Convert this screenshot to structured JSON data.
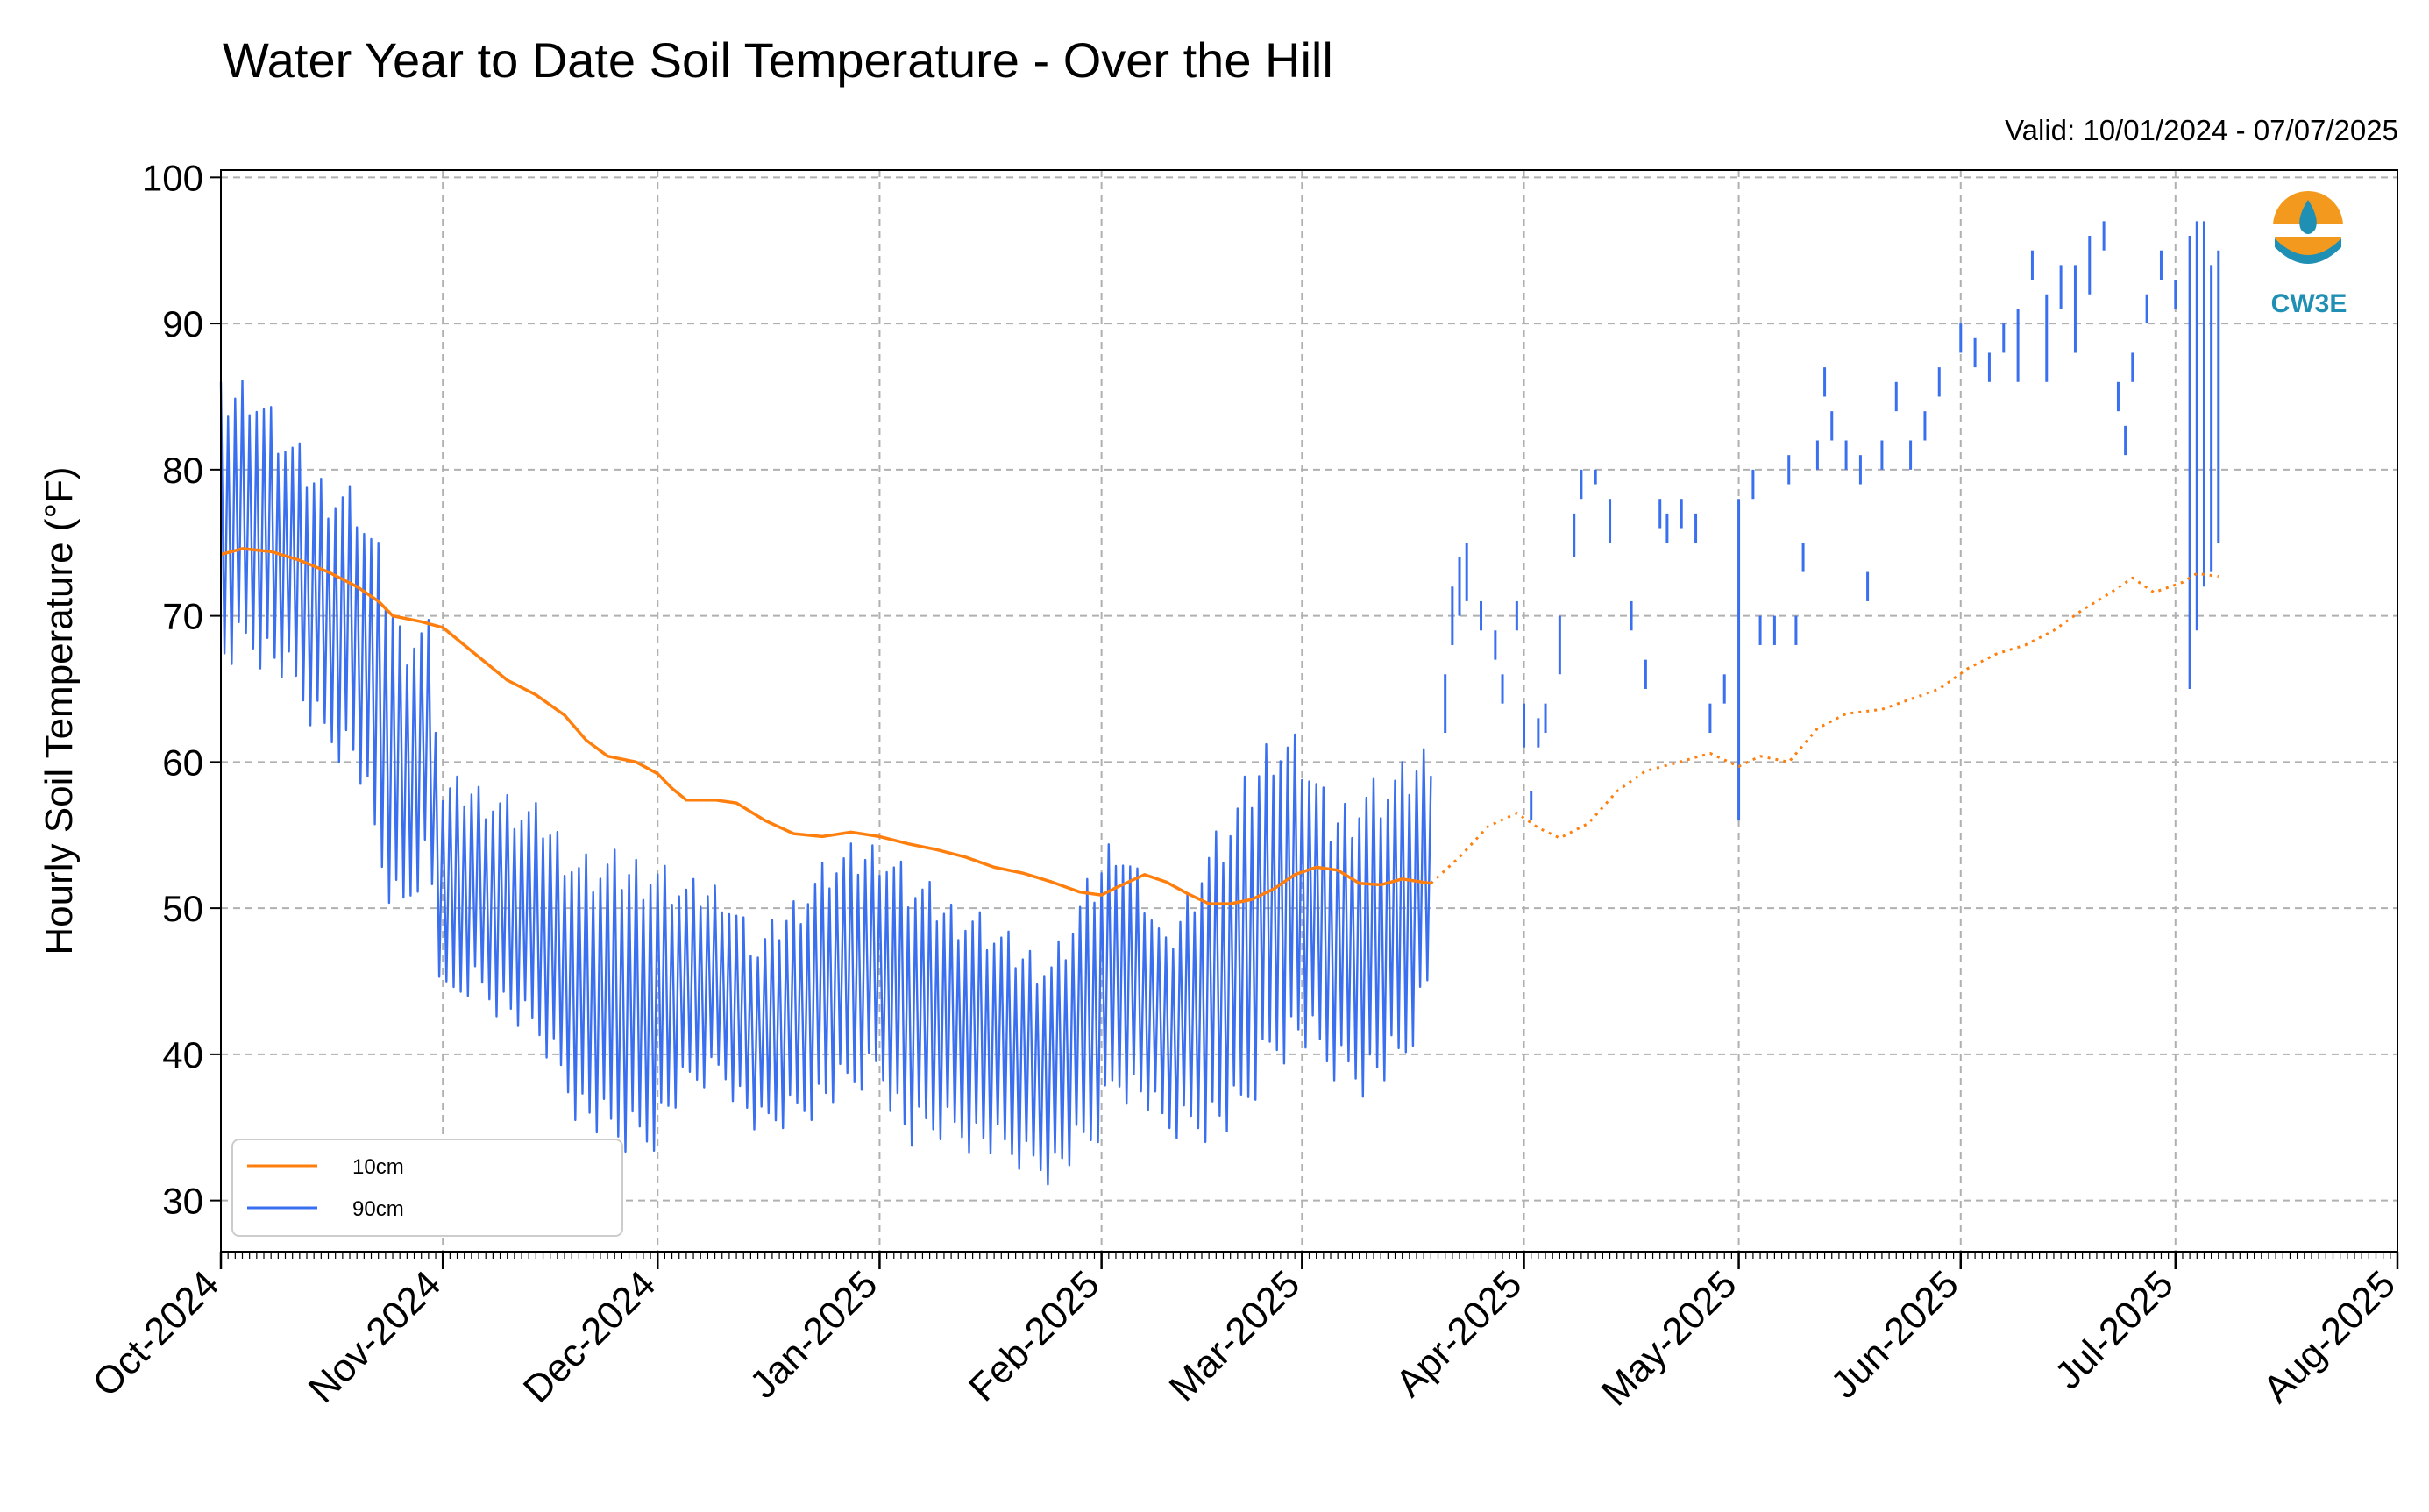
{
  "chart_data": {
    "type": "line",
    "title": "Water Year to Date Soil Temperature - Over the Hill",
    "subtitle": "Valid: 10/01/2024 - 07/07/2025",
    "ylabel": "Hourly Soil Temperature (°F)",
    "ylim": [
      26.5,
      100.5
    ],
    "yticks": [
      30,
      40,
      50,
      60,
      70,
      80,
      90,
      100
    ],
    "xlim": [
      "2024-10-01",
      "2025-08-01"
    ],
    "xticks": [
      {
        "date": "2024-10-01",
        "label": "Oct-2024"
      },
      {
        "date": "2024-11-01",
        "label": "Nov-2024"
      },
      {
        "date": "2024-12-01",
        "label": "Dec-2024"
      },
      {
        "date": "2025-01-01",
        "label": "Jan-2025"
      },
      {
        "date": "2025-02-01",
        "label": "Feb-2025"
      },
      {
        "date": "2025-03-01",
        "label": "Mar-2025"
      },
      {
        "date": "2025-04-01",
        "label": "Apr-2025"
      },
      {
        "date": "2025-05-01",
        "label": "May-2025"
      },
      {
        "date": "2025-06-01",
        "label": "Jun-2025"
      },
      {
        "date": "2025-07-01",
        "label": "Jul-2025"
      },
      {
        "date": "2025-08-01",
        "label": "Aug-2025"
      }
    ],
    "grid": true,
    "legend_position": "lower-left",
    "logo_text": "CW3E",
    "series": [
      {
        "name": "10cm",
        "color": "#ff7f0e",
        "segments": [
          {
            "style": "solid",
            "points": [
              [
                "2024-10-01",
                74.2
              ],
              [
                "2024-10-04",
                74.6
              ],
              [
                "2024-10-08",
                74.4
              ],
              [
                "2024-10-12",
                73.8
              ],
              [
                "2024-10-16",
                73.0
              ],
              [
                "2024-10-20",
                72.0
              ],
              [
                "2024-10-23",
                71.0
              ],
              [
                "2024-10-25",
                70.0
              ],
              [
                "2024-10-29",
                69.6
              ],
              [
                "2024-11-01",
                69.2
              ],
              [
                "2024-11-04",
                68.0
              ],
              [
                "2024-11-07",
                66.8
              ],
              [
                "2024-11-10",
                65.6
              ],
              [
                "2024-11-14",
                64.6
              ],
              [
                "2024-11-18",
                63.2
              ],
              [
                "2024-11-21",
                61.5
              ],
              [
                "2024-11-24",
                60.4
              ],
              [
                "2024-11-28",
                60.0
              ],
              [
                "2024-12-01",
                59.2
              ],
              [
                "2024-12-03",
                58.2
              ],
              [
                "2024-12-05",
                57.4
              ],
              [
                "2024-12-09",
                57.4
              ],
              [
                "2024-12-12",
                57.2
              ],
              [
                "2024-12-16",
                56.0
              ],
              [
                "2024-12-20",
                55.1
              ],
              [
                "2024-12-24",
                54.9
              ],
              [
                "2024-12-28",
                55.2
              ],
              [
                "2025-01-01",
                54.9
              ],
              [
                "2025-01-05",
                54.4
              ],
              [
                "2025-01-09",
                54.0
              ],
              [
                "2025-01-13",
                53.5
              ],
              [
                "2025-01-17",
                52.8
              ],
              [
                "2025-01-21",
                52.4
              ],
              [
                "2025-01-25",
                51.8
              ],
              [
                "2025-01-29",
                51.1
              ],
              [
                "2025-02-01",
                50.9
              ],
              [
                "2025-02-03",
                51.4
              ],
              [
                "2025-02-07",
                52.3
              ],
              [
                "2025-02-10",
                51.8
              ],
              [
                "2025-02-13",
                51.0
              ],
              [
                "2025-02-16",
                50.3
              ],
              [
                "2025-02-19",
                50.3
              ],
              [
                "2025-02-22",
                50.6
              ],
              [
                "2025-02-25",
                51.3
              ],
              [
                "2025-02-28",
                52.3
              ],
              [
                "2025-03-03",
                52.8
              ],
              [
                "2025-03-06",
                52.6
              ],
              [
                "2025-03-09",
                51.7
              ],
              [
                "2025-03-12",
                51.6
              ],
              [
                "2025-03-15",
                52.0
              ],
              [
                "2025-03-19",
                51.7
              ]
            ]
          },
          {
            "style": "dotted",
            "points": [
              [
                "2025-03-19",
                51.7
              ],
              [
                "2025-03-23",
                53.5
              ],
              [
                "2025-03-27",
                55.6
              ],
              [
                "2025-03-31",
                56.5
              ],
              [
                "2025-04-03",
                55.5
              ],
              [
                "2025-04-06",
                54.8
              ],
              [
                "2025-04-10",
                55.8
              ],
              [
                "2025-04-14",
                58.0
              ],
              [
                "2025-04-18",
                59.4
              ],
              [
                "2025-04-22",
                59.9
              ],
              [
                "2025-04-27",
                60.6
              ],
              [
                "2025-05-01",
                59.7
              ],
              [
                "2025-05-04",
                60.4
              ],
              [
                "2025-05-08",
                60.0
              ],
              [
                "2025-05-12",
                62.3
              ],
              [
                "2025-05-16",
                63.3
              ],
              [
                "2025-05-21",
                63.6
              ],
              [
                "2025-05-25",
                64.3
              ],
              [
                "2025-05-29",
                65.0
              ],
              [
                "2025-06-02",
                66.4
              ],
              [
                "2025-06-06",
                67.4
              ],
              [
                "2025-06-10",
                68.0
              ],
              [
                "2025-06-14",
                69.0
              ],
              [
                "2025-06-18",
                70.4
              ],
              [
                "2025-06-22",
                71.6
              ],
              [
                "2025-06-25",
                72.6
              ],
              [
                "2025-06-28",
                71.6
              ],
              [
                "2025-07-02",
                72.3
              ],
              [
                "2025-07-04",
                72.9
              ],
              [
                "2025-07-07",
                72.7
              ]
            ]
          }
        ]
      },
      {
        "name": "90cm",
        "color": "#3a6ff0",
        "envelope": [
          [
            "2024-10-01",
            66,
            86
          ],
          [
            "2024-10-05",
            67,
            87
          ],
          [
            "2024-10-10",
            65,
            83
          ],
          [
            "2024-10-15",
            61,
            80
          ],
          [
            "2024-10-20",
            59,
            79
          ],
          [
            "2024-10-23",
            52,
            75
          ],
          [
            "2024-10-26",
            48,
            70
          ],
          [
            "2024-10-30",
            53,
            70
          ],
          [
            "2024-11-01",
            42,
            59
          ],
          [
            "2024-11-05",
            44,
            59
          ],
          [
            "2024-11-10",
            42,
            58
          ],
          [
            "2024-11-15",
            40,
            57
          ],
          [
            "2024-11-20",
            35,
            54
          ],
          [
            "2024-11-25",
            33,
            54
          ],
          [
            "2024-11-30",
            33,
            54
          ],
          [
            "2024-12-05",
            37,
            52
          ],
          [
            "2024-12-10",
            38,
            52
          ],
          [
            "2024-12-15",
            34,
            48
          ],
          [
            "2024-12-20",
            35,
            51
          ],
          [
            "2024-12-25",
            36,
            54
          ],
          [
            "2025-01-01",
            38,
            55
          ],
          [
            "2025-01-05",
            33,
            53
          ],
          [
            "2025-01-10",
            34,
            51
          ],
          [
            "2025-01-15",
            33,
            50
          ],
          [
            "2025-01-20",
            32,
            48
          ],
          [
            "2025-01-25",
            31,
            47
          ],
          [
            "2025-01-31",
            33,
            53
          ],
          [
            "2025-02-03",
            37,
            56
          ],
          [
            "2025-02-07",
            36,
            52
          ],
          [
            "2025-02-10",
            34,
            48
          ],
          [
            "2025-02-15",
            34,
            54
          ],
          [
            "2025-02-20",
            34,
            58
          ],
          [
            "2025-02-25",
            39,
            63
          ],
          [
            "2025-03-01",
            40,
            62
          ],
          [
            "2025-03-05",
            38,
            57
          ],
          [
            "2025-03-10",
            37,
            59
          ],
          [
            "2025-03-15",
            38,
            60
          ],
          [
            "2025-03-19",
            44,
            62
          ]
        ],
        "sparse_segments": [
          [
            "2025-03-21",
            62,
            66
          ],
          [
            "2025-03-22",
            68,
            72
          ],
          [
            "2025-03-23",
            70,
            74
          ],
          [
            "2025-03-24",
            71,
            75
          ],
          [
            "2025-03-26",
            69,
            71
          ],
          [
            "2025-03-28",
            67,
            69
          ],
          [
            "2025-03-29",
            64,
            66
          ],
          [
            "2025-03-31",
            69,
            71
          ],
          [
            "2025-04-01",
            61,
            64
          ],
          [
            "2025-04-02",
            56,
            58
          ],
          [
            "2025-04-03",
            61,
            63
          ],
          [
            "2025-04-04",
            62,
            64
          ],
          [
            "2025-04-06",
            66,
            70
          ],
          [
            "2025-04-08",
            74,
            77
          ],
          [
            "2025-04-09",
            78,
            80
          ],
          [
            "2025-04-11",
            79,
            80
          ],
          [
            "2025-04-13",
            75,
            78
          ],
          [
            "2025-04-16",
            69,
            71
          ],
          [
            "2025-04-18",
            65,
            67
          ],
          [
            "2025-04-20",
            76,
            78
          ],
          [
            "2025-04-21",
            75,
            77
          ],
          [
            "2025-04-23",
            76,
            78
          ],
          [
            "2025-04-25",
            75,
            77
          ],
          [
            "2025-04-27",
            62,
            64
          ],
          [
            "2025-04-29",
            64,
            66
          ],
          [
            "2025-05-01",
            56,
            78
          ],
          [
            "2025-05-03",
            78,
            80
          ],
          [
            "2025-05-04",
            68,
            70
          ],
          [
            "2025-05-06",
            68,
            70
          ],
          [
            "2025-05-08",
            79,
            81
          ],
          [
            "2025-05-09",
            68,
            70
          ],
          [
            "2025-05-10",
            73,
            75
          ],
          [
            "2025-05-12",
            80,
            82
          ],
          [
            "2025-05-13",
            85,
            87
          ],
          [
            "2025-05-14",
            82,
            84
          ],
          [
            "2025-05-16",
            80,
            82
          ],
          [
            "2025-05-18",
            79,
            81
          ],
          [
            "2025-05-19",
            71,
            73
          ],
          [
            "2025-05-21",
            80,
            82
          ],
          [
            "2025-05-23",
            84,
            86
          ],
          [
            "2025-05-25",
            80,
            82
          ],
          [
            "2025-05-27",
            82,
            84
          ],
          [
            "2025-05-29",
            85,
            87
          ],
          [
            "2025-06-01",
            88,
            90
          ],
          [
            "2025-06-03",
            87,
            89
          ],
          [
            "2025-06-05",
            86,
            88
          ],
          [
            "2025-06-07",
            88,
            90
          ],
          [
            "2025-06-09",
            86,
            91
          ],
          [
            "2025-06-11",
            93,
            95
          ],
          [
            "2025-06-13",
            86,
            92
          ],
          [
            "2025-06-15",
            91,
            94
          ],
          [
            "2025-06-17",
            88,
            94
          ],
          [
            "2025-06-19",
            92,
            96
          ],
          [
            "2025-06-21",
            95,
            97
          ],
          [
            "2025-06-23",
            84,
            86
          ],
          [
            "2025-06-24",
            81,
            83
          ],
          [
            "2025-06-25",
            86,
            88
          ],
          [
            "2025-06-27",
            90,
            92
          ],
          [
            "2025-06-29",
            93,
            95
          ],
          [
            "2025-07-01",
            91,
            93
          ],
          [
            "2025-07-03",
            65,
            96
          ],
          [
            "2025-07-04",
            69,
            97
          ],
          [
            "2025-07-05",
            72,
            97
          ],
          [
            "2025-07-06",
            73,
            94
          ],
          [
            "2025-07-07",
            75,
            95
          ]
        ]
      }
    ]
  }
}
